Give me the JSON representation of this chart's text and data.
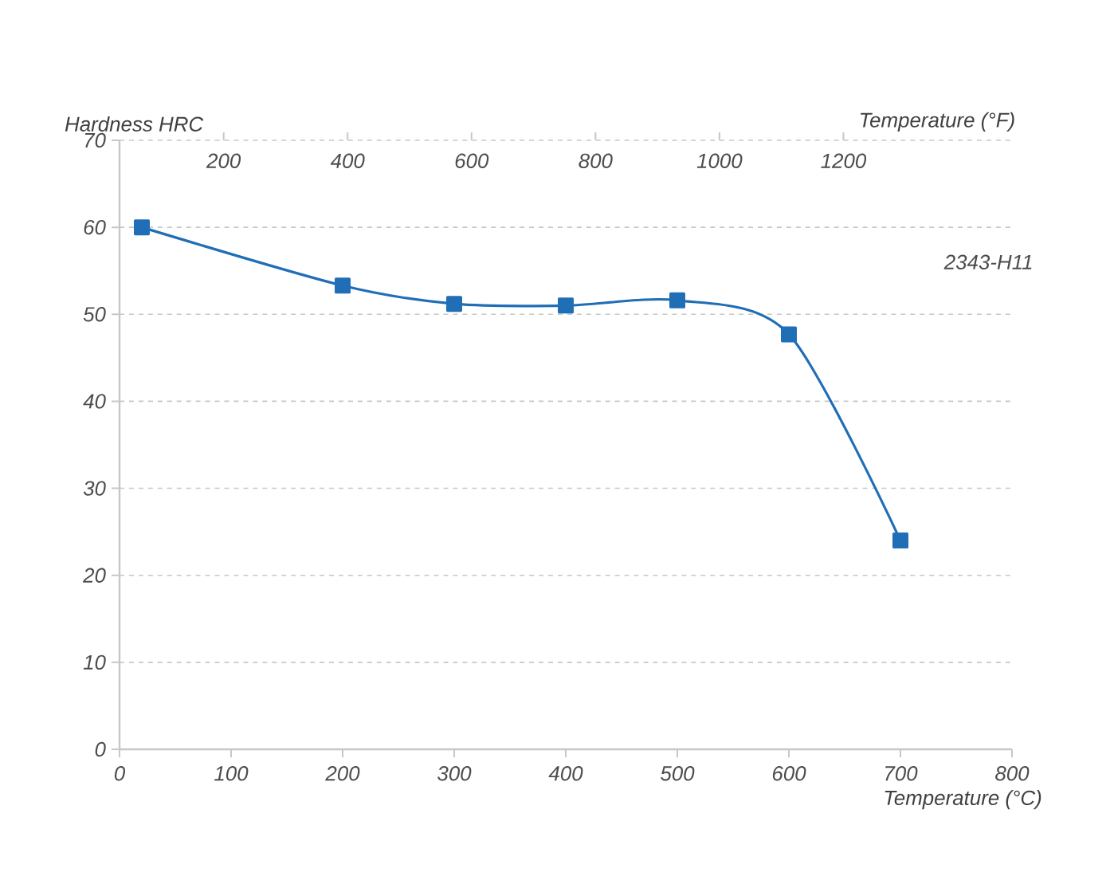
{
  "chart_data": {
    "type": "line",
    "ylabel": "Hardness HRC",
    "xlabel": "Temperature (°C)",
    "x2label": "Temperature (°F)",
    "xlim": [
      0,
      800
    ],
    "xticks": [
      0,
      100,
      200,
      300,
      400,
      500,
      600,
      700,
      800
    ],
    "x2lim": [
      32,
      1472
    ],
    "x2ticks": [
      200,
      400,
      600,
      800,
      1000,
      1200
    ],
    "ylim": [
      0,
      70
    ],
    "yticks": [
      0,
      10,
      20,
      30,
      40,
      50,
      60,
      70
    ],
    "grid": "y",
    "marker": "square",
    "line_style": "solid",
    "series": [
      {
        "name": "2343-H11",
        "color": "#1f6eb6",
        "x": [
          20,
          200,
          300,
          400,
          500,
          600,
          700
        ],
        "values": [
          60,
          53.3,
          51.2,
          51,
          51.6,
          47.7,
          24
        ]
      }
    ]
  }
}
